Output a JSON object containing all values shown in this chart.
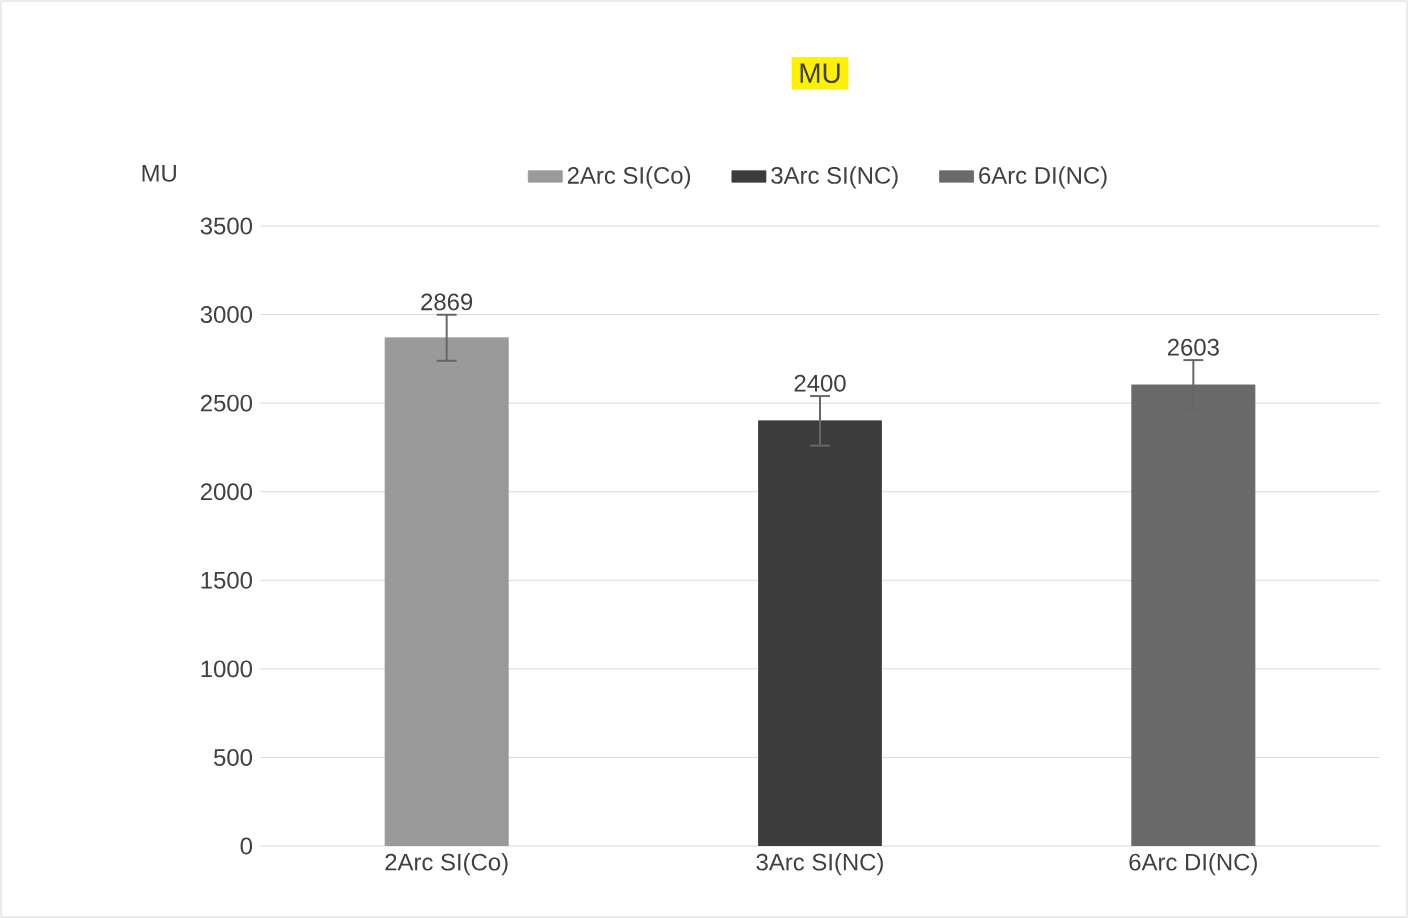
{
  "chart_data": {
    "type": "bar",
    "title": "MU",
    "ylabel": "MU",
    "categories": [
      "2Arc SI(Co)",
      "3Arc SI(NC)",
      "6Arc DI(NC)"
    ],
    "series": [
      {
        "name": "2Arc SI(Co)",
        "color": "#9a9a9a",
        "values": [
          2869,
          null,
          null
        ],
        "errors": [
          130,
          null,
          null
        ]
      },
      {
        "name": "3Arc SI(NC)",
        "color": "#3c3c3c",
        "values": [
          null,
          2400,
          null
        ],
        "errors": [
          null,
          140,
          null
        ]
      },
      {
        "name": "6Arc DI(NC)",
        "color": "#6a6a6a",
        "values": [
          null,
          null,
          2603
        ],
        "errors": [
          null,
          null,
          140
        ]
      }
    ],
    "ylim": [
      0,
      3500
    ],
    "yticks": [
      0,
      500,
      1000,
      1500,
      2000,
      2500,
      3000,
      3500
    ],
    "grid": "y",
    "legend": "top",
    "data_labels": true
  }
}
